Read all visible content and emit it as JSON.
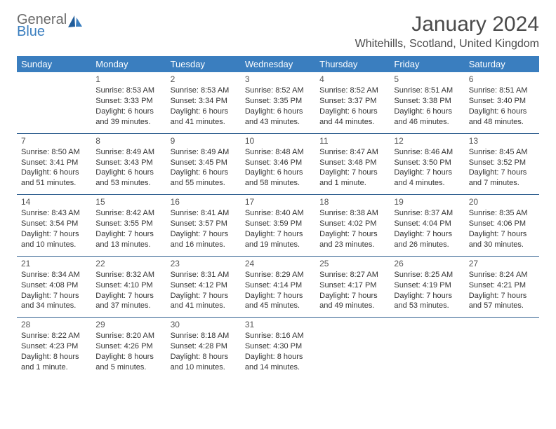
{
  "brand": {
    "line1": "General",
    "line2": "Blue"
  },
  "title": "January 2024",
  "location": "Whitehills, Scotland, United Kingdom",
  "colors": {
    "header_bg": "#3a7ebf",
    "header_text": "#ffffff",
    "row_border": "#2f5f8f",
    "text": "#333333"
  },
  "dayHeaders": [
    "Sunday",
    "Monday",
    "Tuesday",
    "Wednesday",
    "Thursday",
    "Friday",
    "Saturday"
  ],
  "weeks": [
    [
      {
        "num": "",
        "sunrise": "",
        "sunset": "",
        "daylight": ""
      },
      {
        "num": "1",
        "sunrise": "Sunrise: 8:53 AM",
        "sunset": "Sunset: 3:33 PM",
        "daylight": "Daylight: 6 hours and 39 minutes."
      },
      {
        "num": "2",
        "sunrise": "Sunrise: 8:53 AM",
        "sunset": "Sunset: 3:34 PM",
        "daylight": "Daylight: 6 hours and 41 minutes."
      },
      {
        "num": "3",
        "sunrise": "Sunrise: 8:52 AM",
        "sunset": "Sunset: 3:35 PM",
        "daylight": "Daylight: 6 hours and 43 minutes."
      },
      {
        "num": "4",
        "sunrise": "Sunrise: 8:52 AM",
        "sunset": "Sunset: 3:37 PM",
        "daylight": "Daylight: 6 hours and 44 minutes."
      },
      {
        "num": "5",
        "sunrise": "Sunrise: 8:51 AM",
        "sunset": "Sunset: 3:38 PM",
        "daylight": "Daylight: 6 hours and 46 minutes."
      },
      {
        "num": "6",
        "sunrise": "Sunrise: 8:51 AM",
        "sunset": "Sunset: 3:40 PM",
        "daylight": "Daylight: 6 hours and 48 minutes."
      }
    ],
    [
      {
        "num": "7",
        "sunrise": "Sunrise: 8:50 AM",
        "sunset": "Sunset: 3:41 PM",
        "daylight": "Daylight: 6 hours and 51 minutes."
      },
      {
        "num": "8",
        "sunrise": "Sunrise: 8:49 AM",
        "sunset": "Sunset: 3:43 PM",
        "daylight": "Daylight: 6 hours and 53 minutes."
      },
      {
        "num": "9",
        "sunrise": "Sunrise: 8:49 AM",
        "sunset": "Sunset: 3:45 PM",
        "daylight": "Daylight: 6 hours and 55 minutes."
      },
      {
        "num": "10",
        "sunrise": "Sunrise: 8:48 AM",
        "sunset": "Sunset: 3:46 PM",
        "daylight": "Daylight: 6 hours and 58 minutes."
      },
      {
        "num": "11",
        "sunrise": "Sunrise: 8:47 AM",
        "sunset": "Sunset: 3:48 PM",
        "daylight": "Daylight: 7 hours and 1 minute."
      },
      {
        "num": "12",
        "sunrise": "Sunrise: 8:46 AM",
        "sunset": "Sunset: 3:50 PM",
        "daylight": "Daylight: 7 hours and 4 minutes."
      },
      {
        "num": "13",
        "sunrise": "Sunrise: 8:45 AM",
        "sunset": "Sunset: 3:52 PM",
        "daylight": "Daylight: 7 hours and 7 minutes."
      }
    ],
    [
      {
        "num": "14",
        "sunrise": "Sunrise: 8:43 AM",
        "sunset": "Sunset: 3:54 PM",
        "daylight": "Daylight: 7 hours and 10 minutes."
      },
      {
        "num": "15",
        "sunrise": "Sunrise: 8:42 AM",
        "sunset": "Sunset: 3:55 PM",
        "daylight": "Daylight: 7 hours and 13 minutes."
      },
      {
        "num": "16",
        "sunrise": "Sunrise: 8:41 AM",
        "sunset": "Sunset: 3:57 PM",
        "daylight": "Daylight: 7 hours and 16 minutes."
      },
      {
        "num": "17",
        "sunrise": "Sunrise: 8:40 AM",
        "sunset": "Sunset: 3:59 PM",
        "daylight": "Daylight: 7 hours and 19 minutes."
      },
      {
        "num": "18",
        "sunrise": "Sunrise: 8:38 AM",
        "sunset": "Sunset: 4:02 PM",
        "daylight": "Daylight: 7 hours and 23 minutes."
      },
      {
        "num": "19",
        "sunrise": "Sunrise: 8:37 AM",
        "sunset": "Sunset: 4:04 PM",
        "daylight": "Daylight: 7 hours and 26 minutes."
      },
      {
        "num": "20",
        "sunrise": "Sunrise: 8:35 AM",
        "sunset": "Sunset: 4:06 PM",
        "daylight": "Daylight: 7 hours and 30 minutes."
      }
    ],
    [
      {
        "num": "21",
        "sunrise": "Sunrise: 8:34 AM",
        "sunset": "Sunset: 4:08 PM",
        "daylight": "Daylight: 7 hours and 34 minutes."
      },
      {
        "num": "22",
        "sunrise": "Sunrise: 8:32 AM",
        "sunset": "Sunset: 4:10 PM",
        "daylight": "Daylight: 7 hours and 37 minutes."
      },
      {
        "num": "23",
        "sunrise": "Sunrise: 8:31 AM",
        "sunset": "Sunset: 4:12 PM",
        "daylight": "Daylight: 7 hours and 41 minutes."
      },
      {
        "num": "24",
        "sunrise": "Sunrise: 8:29 AM",
        "sunset": "Sunset: 4:14 PM",
        "daylight": "Daylight: 7 hours and 45 minutes."
      },
      {
        "num": "25",
        "sunrise": "Sunrise: 8:27 AM",
        "sunset": "Sunset: 4:17 PM",
        "daylight": "Daylight: 7 hours and 49 minutes."
      },
      {
        "num": "26",
        "sunrise": "Sunrise: 8:25 AM",
        "sunset": "Sunset: 4:19 PM",
        "daylight": "Daylight: 7 hours and 53 minutes."
      },
      {
        "num": "27",
        "sunrise": "Sunrise: 8:24 AM",
        "sunset": "Sunset: 4:21 PM",
        "daylight": "Daylight: 7 hours and 57 minutes."
      }
    ],
    [
      {
        "num": "28",
        "sunrise": "Sunrise: 8:22 AM",
        "sunset": "Sunset: 4:23 PM",
        "daylight": "Daylight: 8 hours and 1 minute."
      },
      {
        "num": "29",
        "sunrise": "Sunrise: 8:20 AM",
        "sunset": "Sunset: 4:26 PM",
        "daylight": "Daylight: 8 hours and 5 minutes."
      },
      {
        "num": "30",
        "sunrise": "Sunrise: 8:18 AM",
        "sunset": "Sunset: 4:28 PM",
        "daylight": "Daylight: 8 hours and 10 minutes."
      },
      {
        "num": "31",
        "sunrise": "Sunrise: 8:16 AM",
        "sunset": "Sunset: 4:30 PM",
        "daylight": "Daylight: 8 hours and 14 minutes."
      },
      {
        "num": "",
        "sunrise": "",
        "sunset": "",
        "daylight": ""
      },
      {
        "num": "",
        "sunrise": "",
        "sunset": "",
        "daylight": ""
      },
      {
        "num": "",
        "sunrise": "",
        "sunset": "",
        "daylight": ""
      }
    ]
  ]
}
